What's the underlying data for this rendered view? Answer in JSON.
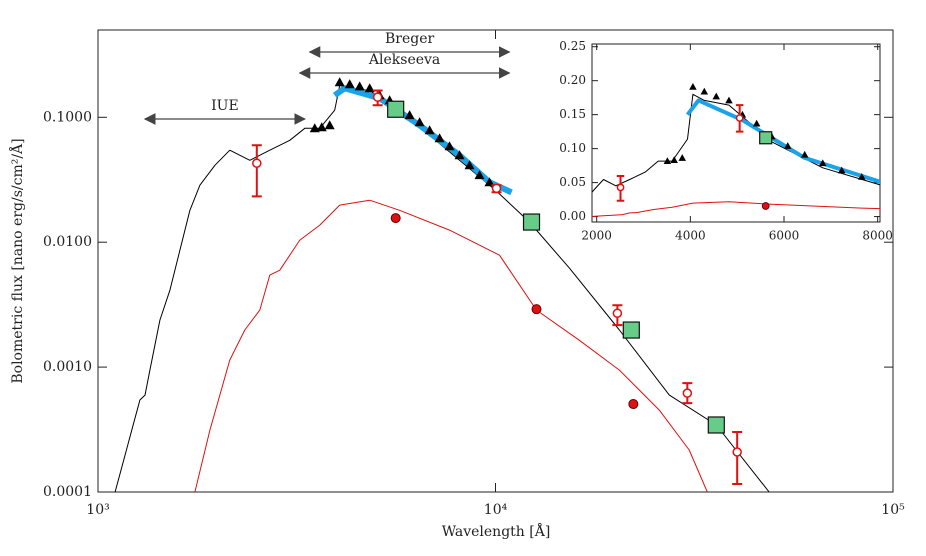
{
  "chart_data": [
    {
      "type": "line",
      "xlabel": "Wavelength [Å]",
      "ylabel": "Bolometric flux [nano erg/s/cm²/Å]",
      "xlog": true,
      "ylog": true,
      "xlim": [
        1000,
        100000
      ],
      "ylim": [
        0.0001,
        0.5
      ],
      "xticks": [
        {
          "value": 1000,
          "label": "10³"
        },
        {
          "value": 10000,
          "label": "10⁴"
        },
        {
          "value": 100000,
          "label": "10⁵"
        }
      ],
      "yticks": [
        {
          "value": 0.0001,
          "label": "0.0001"
        },
        {
          "value": 0.001,
          "label": "0.0010"
        },
        {
          "value": 0.01,
          "label": "0.0100"
        },
        {
          "value": 0.1,
          "label": "0.1000"
        }
      ],
      "series": [
        {
          "marker": "line",
          "color": "#000000",
          "width": 1,
          "x": [
            1104,
            1275,
            1313,
            1351,
            1431,
            1517,
            1607,
            1703,
            1804,
            1968,
            2146,
            2409,
            2705,
            3037,
            3313,
            3613,
            3939,
            4055,
            4298,
            4825,
            5738,
            6827,
            8120,
            10000,
            12170,
            15350,
            20500,
            27370,
            35930,
            48800
          ],
          "values": [
            0.0001,
            0.000545,
            0.000597,
            0.000946,
            0.00238,
            0.00413,
            0.00863,
            0.018,
            0.0286,
            0.0413,
            0.0545,
            0.0453,
            0.0545,
            0.0655,
            0.0817,
            0.0817,
            0.114,
            0.18,
            0.171,
            0.164,
            0.11,
            0.0718,
            0.0453,
            0.0261,
            0.0145,
            0.00619,
            0.00198,
            0.000597,
            0.000344,
            0.0001
          ]
        },
        {
          "marker": "line",
          "color": "#e01010",
          "width": 1,
          "x": [
            1753,
            1912,
            2146,
            2341,
            2553,
            2705,
            2866,
            3218,
            3613,
            4055,
            4825,
            5738,
            7661,
            10235,
            12680,
            16260,
            20500,
            25830,
            30720,
            34100
          ],
          "values": [
            0.0001,
            0.000313,
            0.00114,
            0.00198,
            0.00286,
            0.00545,
            0.00597,
            0.0104,
            0.0137,
            0.0198,
            0.0217,
            0.018,
            0.0125,
            0.00787,
            0.00286,
            0.00164,
            0.000946,
            0.000453,
            0.000217,
            0.0001
          ]
        },
        {
          "marker": "line",
          "color": "#1aa3e8",
          "width": 6,
          "x": [
            3939,
            4174,
            5112,
            6442,
            8120,
            9658,
            10970
          ],
          "values": [
            0.15,
            0.171,
            0.142,
            0.0863,
            0.0497,
            0.0302,
            0.0251
          ]
        },
        {
          "marker": "triangle",
          "color": "#000000",
          "x": [
            3510,
            3655,
            3827,
            4055,
            4298,
            4553,
            4825,
            5112,
            5416,
            5738,
            6080,
            6442,
            6827,
            7233,
            7661,
            8120,
            8604,
            9116,
            9658
          ],
          "values": [
            0.0817,
            0.0832,
            0.0863,
            0.191,
            0.184,
            0.177,
            0.171,
            0.15,
            0.137,
            0.118,
            0.104,
            0.0912,
            0.0787,
            0.0679,
            0.0586,
            0.0497,
            0.0413,
            0.0344,
            0.0302
          ]
        },
        {
          "marker": "square",
          "color": "#66cc88",
          "x": [
            5609,
            12320,
            21960,
            35930
          ],
          "values": [
            0.116,
            0.0145,
            0.00198,
            0.000344
          ]
        },
        {
          "marker": "circle",
          "color": "#e01010",
          "x": [
            5609,
            12680,
            22220
          ],
          "values": [
            0.0156,
            0.00291,
            0.000506
          ]
        },
        {
          "marker": "open-circle",
          "color": "#e01010",
          "x": [
            2509,
            5053,
            10058,
            20260,
            30380,
            40550
          ],
          "values": [
            0.0429,
            0.145,
            0.027,
            0.0027,
            0.000619,
            0.000209
          ],
          "err_low": [
            0.0233,
            0.125,
            0.0251,
            0.00217,
            0.000515,
            0.000116
          ],
          "err_high": [
            0.0597,
            0.164,
            0.0286,
            0.00313,
            0.000745,
            0.000302
          ]
        }
      ],
      "annotations": [
        {
          "text": "IUE",
          "x": [
            1313,
            3313
          ]
        },
        {
          "text": "Alekseeva",
          "x": [
            3218,
            10840
          ]
        },
        {
          "text": "Breger",
          "x": [
            3410,
            10840
          ]
        }
      ]
    },
    {
      "type": "line",
      "xlog": false,
      "ylog": false,
      "xlim": [
        1900,
        8050
      ],
      "ylim": [
        -0.008,
        0.254
      ],
      "xticks": [
        2000,
        4000,
        6000,
        8000
      ],
      "yticks": [
        {
          "value": 0,
          "label": "0.00"
        },
        {
          "value": 0.05,
          "label": "0.05"
        },
        {
          "value": 0.1,
          "label": "0.10"
        },
        {
          "value": 0.15,
          "label": "0.15"
        },
        {
          "value": 0.2,
          "label": "0.20"
        },
        {
          "value": 0.25,
          "label": "0.25"
        }
      ]
    }
  ]
}
